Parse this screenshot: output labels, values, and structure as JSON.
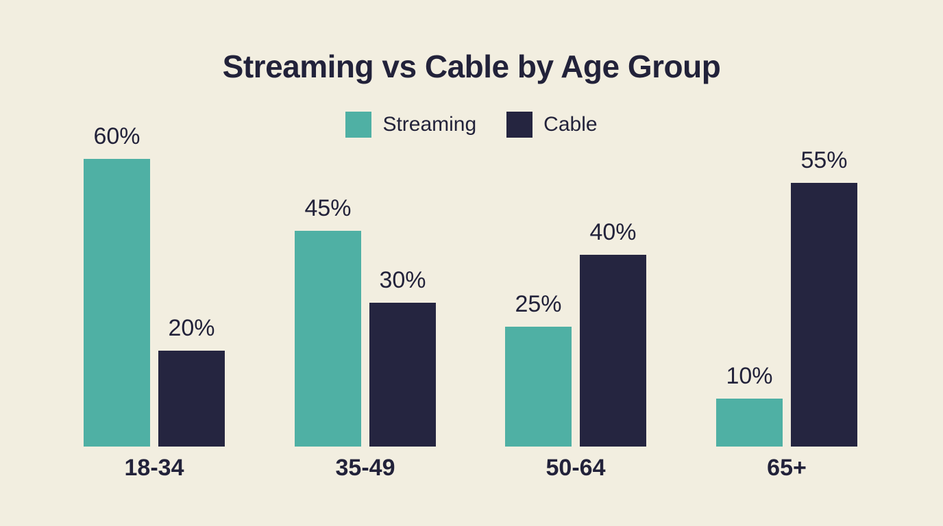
{
  "title": "Streaming vs Cable by Age Group",
  "legend": [
    {
      "label": "Streaming",
      "color": "#4FB0A4"
    },
    {
      "label": "Cable",
      "color": "#252540"
    }
  ],
  "colors": {
    "background": "#F2EEE0",
    "text": "#22223A",
    "streaming": "#4FB0A4",
    "cable": "#252540"
  },
  "chart_data": {
    "type": "bar",
    "title": "Streaming vs Cable by Age Group",
    "categories": [
      "18-34",
      "35-49",
      "50-64",
      "65+"
    ],
    "series": [
      {
        "name": "Streaming",
        "color": "#4FB0A4",
        "values": [
          60,
          45,
          25,
          10
        ]
      },
      {
        "name": "Cable",
        "color": "#252540",
        "values": [
          20,
          30,
          40,
          55
        ]
      }
    ],
    "value_labels": {
      "Streaming": [
        "60%",
        "45%",
        "25%",
        "10%"
      ],
      "Cable": [
        "20%",
        "30%",
        "40%",
        "55%"
      ]
    },
    "unit": "%",
    "ylim": [
      0,
      60
    ],
    "grid": false,
    "axes_visible": false,
    "legend_position": "top-center",
    "background": "#F2EEE0"
  }
}
